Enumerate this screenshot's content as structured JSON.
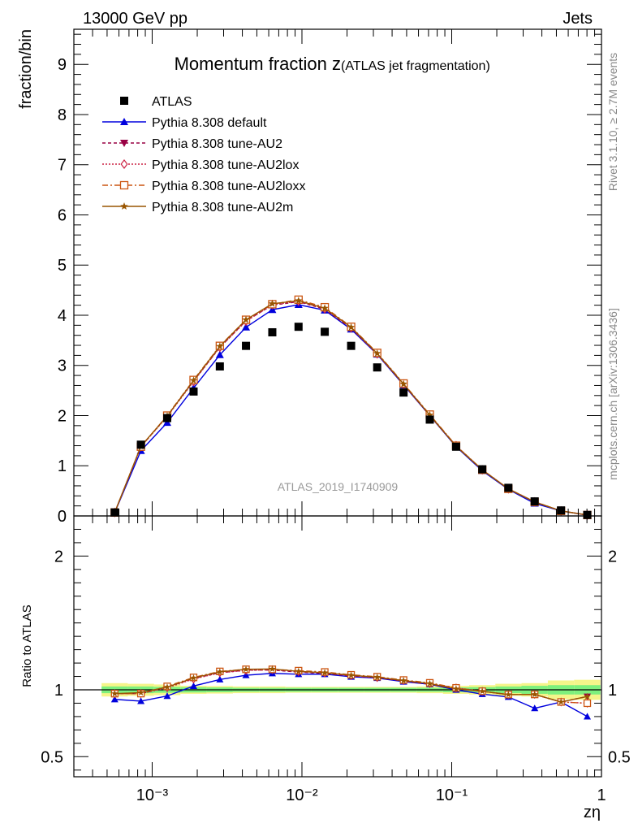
{
  "header": {
    "left": "13000 GeV pp",
    "right": "Jets"
  },
  "side": {
    "rivet": "Rivet 3.1.10, ≥ 2.7M events",
    "mcplots": "mcplots.cern.ch [arXiv:1306.3436]"
  },
  "chart_data": {
    "type": "scatter",
    "title_main": "Momentum fraction z",
    "title_sub": "(ATLAS jet fragmentation)",
    "watermark": "ATLAS_2019_I1740909",
    "xlabel": "zη",
    "ylabel_top": "fraction/bin",
    "ylabel_bottom": "Ratio to ATLAS",
    "xscale": "log",
    "xlim": [
      0.0003,
      1
    ],
    "ylim_top": [
      0,
      9.7
    ],
    "ylim_ratio": [
      0.35,
      2.3
    ],
    "xticks": [
      {
        "value": 0.001,
        "label": "10⁻³"
      },
      {
        "value": 0.01,
        "label": "10⁻²"
      },
      {
        "value": 0.1,
        "label": "10⁻¹"
      },
      {
        "value": 1,
        "label": "1"
      }
    ],
    "yticks_top": [
      0,
      1,
      2,
      3,
      4,
      5,
      6,
      7,
      8,
      9
    ],
    "yticks_ratio": [
      {
        "value": 0.5,
        "label": "0.5"
      },
      {
        "value": 1,
        "label": "1"
      },
      {
        "value": 2,
        "label": "2"
      }
    ],
    "legend_position": "top-left",
    "x": [
      0.000562,
      0.000841,
      0.00126,
      0.00189,
      0.00283,
      0.00423,
      0.00634,
      0.00949,
      0.0142,
      0.0213,
      0.0318,
      0.0477,
      0.0714,
      0.107,
      0.16,
      0.239,
      0.358,
      0.537,
      0.804
    ],
    "data": {
      "name": "ATLAS",
      "color": "#000000",
      "values": [
        0.07,
        1.42,
        1.95,
        2.48,
        2.98,
        3.39,
        3.66,
        3.77,
        3.67,
        3.39,
        2.96,
        2.46,
        1.92,
        1.38,
        0.93,
        0.56,
        0.29,
        0.11,
        0.02
      ]
    },
    "band_errors": {
      "inner": [
        0.025,
        0.025,
        0.022,
        0.02,
        0.018,
        0.015,
        0.015,
        0.015,
        0.015,
        0.015,
        0.015,
        0.015,
        0.015,
        0.018,
        0.02,
        0.025,
        0.03,
        0.035,
        0.035
      ],
      "outer": [
        0.05,
        0.045,
        0.04,
        0.03,
        0.028,
        0.025,
        0.025,
        0.022,
        0.022,
        0.022,
        0.022,
        0.022,
        0.025,
        0.03,
        0.035,
        0.045,
        0.05,
        0.07,
        0.075
      ],
      "inner_color": "#7df07d",
      "outer_color": "#f5f58a"
    },
    "series": [
      {
        "name": "Pythia 8.308 default",
        "color": "#0000dd",
        "marker": "triangle-up",
        "dash": "",
        "values": [
          0.065,
          1.3,
          1.86,
          2.55,
          3.21,
          3.76,
          4.11,
          4.21,
          4.1,
          3.72,
          3.22,
          2.61,
          2.0,
          1.38,
          0.9,
          0.53,
          0.25,
          0.1,
          0.016
        ]
      },
      {
        "name": "Pythia 8.308 tune-AU2",
        "color": "#990044",
        "marker": "triangle-down",
        "dash": "4,3",
        "values": [
          0.068,
          1.38,
          1.99,
          2.69,
          3.36,
          3.89,
          4.2,
          4.27,
          4.12,
          3.74,
          3.23,
          2.62,
          2.0,
          1.39,
          0.92,
          0.54,
          0.28,
          0.1,
          0.019
        ]
      },
      {
        "name": "Pythia 8.308 tune-AU2lox",
        "color": "#cc2244",
        "marker": "diamond-open",
        "dash": "2,2",
        "values": [
          0.068,
          1.38,
          1.98,
          2.68,
          3.36,
          3.88,
          4.21,
          4.28,
          4.13,
          3.75,
          3.23,
          2.63,
          2.01,
          1.4,
          0.92,
          0.54,
          0.28,
          0.1,
          0.018
        ]
      },
      {
        "name": "Pythia 8.308 tune-AU2loxx",
        "color": "#cc5511",
        "marker": "square-open",
        "dash": "7,3,2,3",
        "values": [
          0.068,
          1.38,
          2.0,
          2.71,
          3.39,
          3.91,
          4.22,
          4.31,
          4.16,
          3.77,
          3.25,
          2.64,
          2.02,
          1.4,
          0.92,
          0.54,
          0.28,
          0.1,
          0.018
        ]
      },
      {
        "name": "Pythia 8.308 tune-AU2m",
        "color": "#995500",
        "marker": "star",
        "dash": "",
        "values": [
          0.068,
          1.39,
          1.99,
          2.7,
          3.38,
          3.91,
          4.23,
          4.29,
          4.14,
          3.76,
          3.24,
          2.63,
          2.01,
          1.39,
          0.92,
          0.54,
          0.28,
          0.1,
          0.019
        ]
      }
    ]
  }
}
